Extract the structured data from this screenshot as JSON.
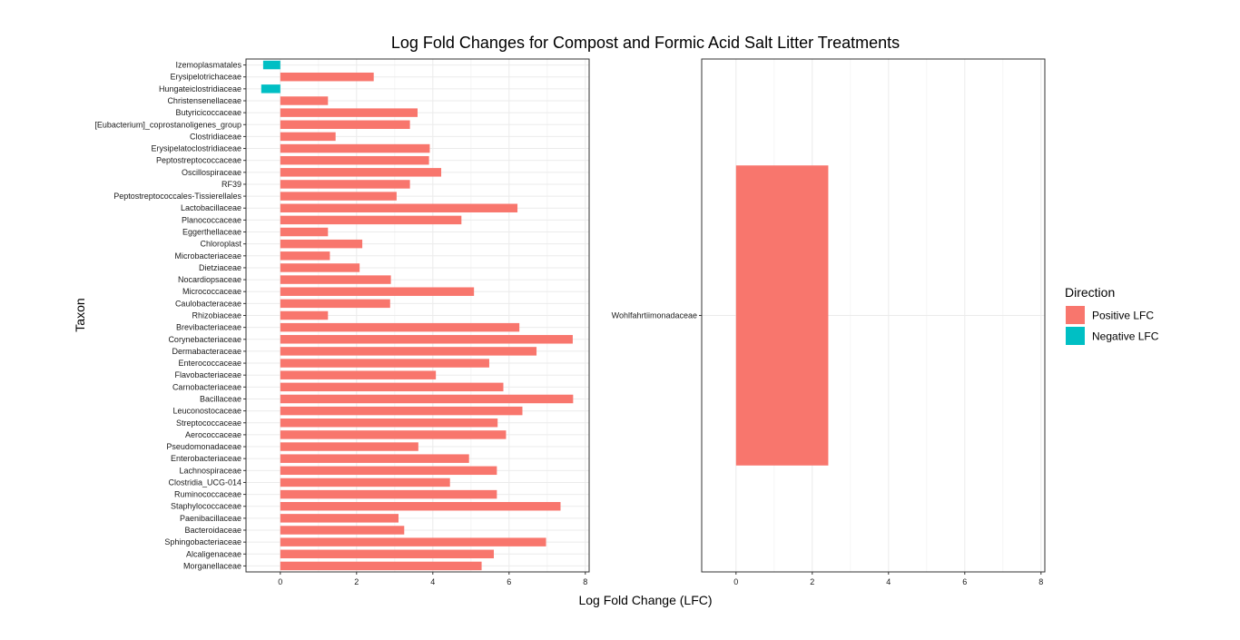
{
  "chart_data": {
    "type": "bar",
    "orientation": "horizontal",
    "title": "Log Fold Changes for Compost and Formic Acid Salt Litter Treatments",
    "xlabel": "Log Fold Change (LFC)",
    "ylabel": "Taxon",
    "grid": true,
    "legend": {
      "title": "Direction",
      "placement": "right",
      "entries": [
        {
          "label": "Positive LFC",
          "color": "#F8766D"
        },
        {
          "label": "Negative LFC",
          "color": "#00BFC4"
        }
      ]
    },
    "panels": [
      {
        "xlim": [
          -0.9,
          8.1
        ],
        "xticks": [
          0,
          2,
          4,
          6,
          8
        ],
        "bars": [
          {
            "taxon": "Izemoplasmatales",
            "value": -0.45
          },
          {
            "taxon": "Erysipelotrichaceae",
            "value": 2.45
          },
          {
            "taxon": "Hungateiclostridiaceae",
            "value": -0.5
          },
          {
            "taxon": "Christensenellaceae",
            "value": 1.25
          },
          {
            "taxon": "Butyricicoccaceae",
            "value": 3.6
          },
          {
            "taxon": "[Eubacterium]_coprostanoligenes_group",
            "value": 3.4
          },
          {
            "taxon": "Clostridiaceae",
            "value": 1.45
          },
          {
            "taxon": "Erysipelatoclostridiaceae",
            "value": 3.92
          },
          {
            "taxon": "Peptostreptococcaceae",
            "value": 3.9
          },
          {
            "taxon": "Oscillospiraceae",
            "value": 4.22
          },
          {
            "taxon": "RF39",
            "value": 3.4
          },
          {
            "taxon": "Peptostreptococcales-Tissierellales",
            "value": 3.05
          },
          {
            "taxon": "Lactobacillaceae",
            "value": 6.22
          },
          {
            "taxon": "Planococcaceae",
            "value": 4.75
          },
          {
            "taxon": "Eggerthellaceae",
            "value": 1.25
          },
          {
            "taxon": "Chloroplast",
            "value": 2.15
          },
          {
            "taxon": "Microbacteriaceae",
            "value": 1.3
          },
          {
            "taxon": "Dietziaceae",
            "value": 2.08
          },
          {
            "taxon": "Nocardiopsaceae",
            "value": 2.9
          },
          {
            "taxon": "Micrococcaceae",
            "value": 5.08
          },
          {
            "taxon": "Caulobacteraceae",
            "value": 2.88
          },
          {
            "taxon": "Rhizobiaceae",
            "value": 1.25
          },
          {
            "taxon": "Brevibacteriaceae",
            "value": 6.27
          },
          {
            "taxon": "Corynebacteriaceae",
            "value": 7.67
          },
          {
            "taxon": "Dermabacteraceae",
            "value": 6.72
          },
          {
            "taxon": "Enterococcaceae",
            "value": 5.48
          },
          {
            "taxon": "Flavobacteriaceae",
            "value": 4.08
          },
          {
            "taxon": "Carnobacteriaceae",
            "value": 5.85
          },
          {
            "taxon": "Bacillaceae",
            "value": 7.68
          },
          {
            "taxon": "Leuconostocaceae",
            "value": 6.35
          },
          {
            "taxon": "Streptococcaceae",
            "value": 5.7
          },
          {
            "taxon": "Aerococcaceae",
            "value": 5.92
          },
          {
            "taxon": "Pseudomonadaceae",
            "value": 3.62
          },
          {
            "taxon": "Enterobacteriaceae",
            "value": 4.95
          },
          {
            "taxon": "Lachnospiraceae",
            "value": 5.68
          },
          {
            "taxon": "Clostridia_UCG-014",
            "value": 4.45
          },
          {
            "taxon": "Ruminococcaceae",
            "value": 5.68
          },
          {
            "taxon": "Staphylococcaceae",
            "value": 7.35
          },
          {
            "taxon": "Paenibacillaceae",
            "value": 3.1
          },
          {
            "taxon": "Bacteroidaceae",
            "value": 3.25
          },
          {
            "taxon": "Sphingobacteriaceae",
            "value": 6.97
          },
          {
            "taxon": "Alcaligenaceae",
            "value": 5.6
          },
          {
            "taxon": "Morganellaceae",
            "value": 5.28
          }
        ]
      },
      {
        "xlim": [
          -0.9,
          8.1
        ],
        "xticks": [
          0,
          2,
          4,
          6,
          8
        ],
        "bars": [
          {
            "taxon": "Wohlfahrtiimonadaceae",
            "value": 2.42
          }
        ]
      }
    ]
  }
}
